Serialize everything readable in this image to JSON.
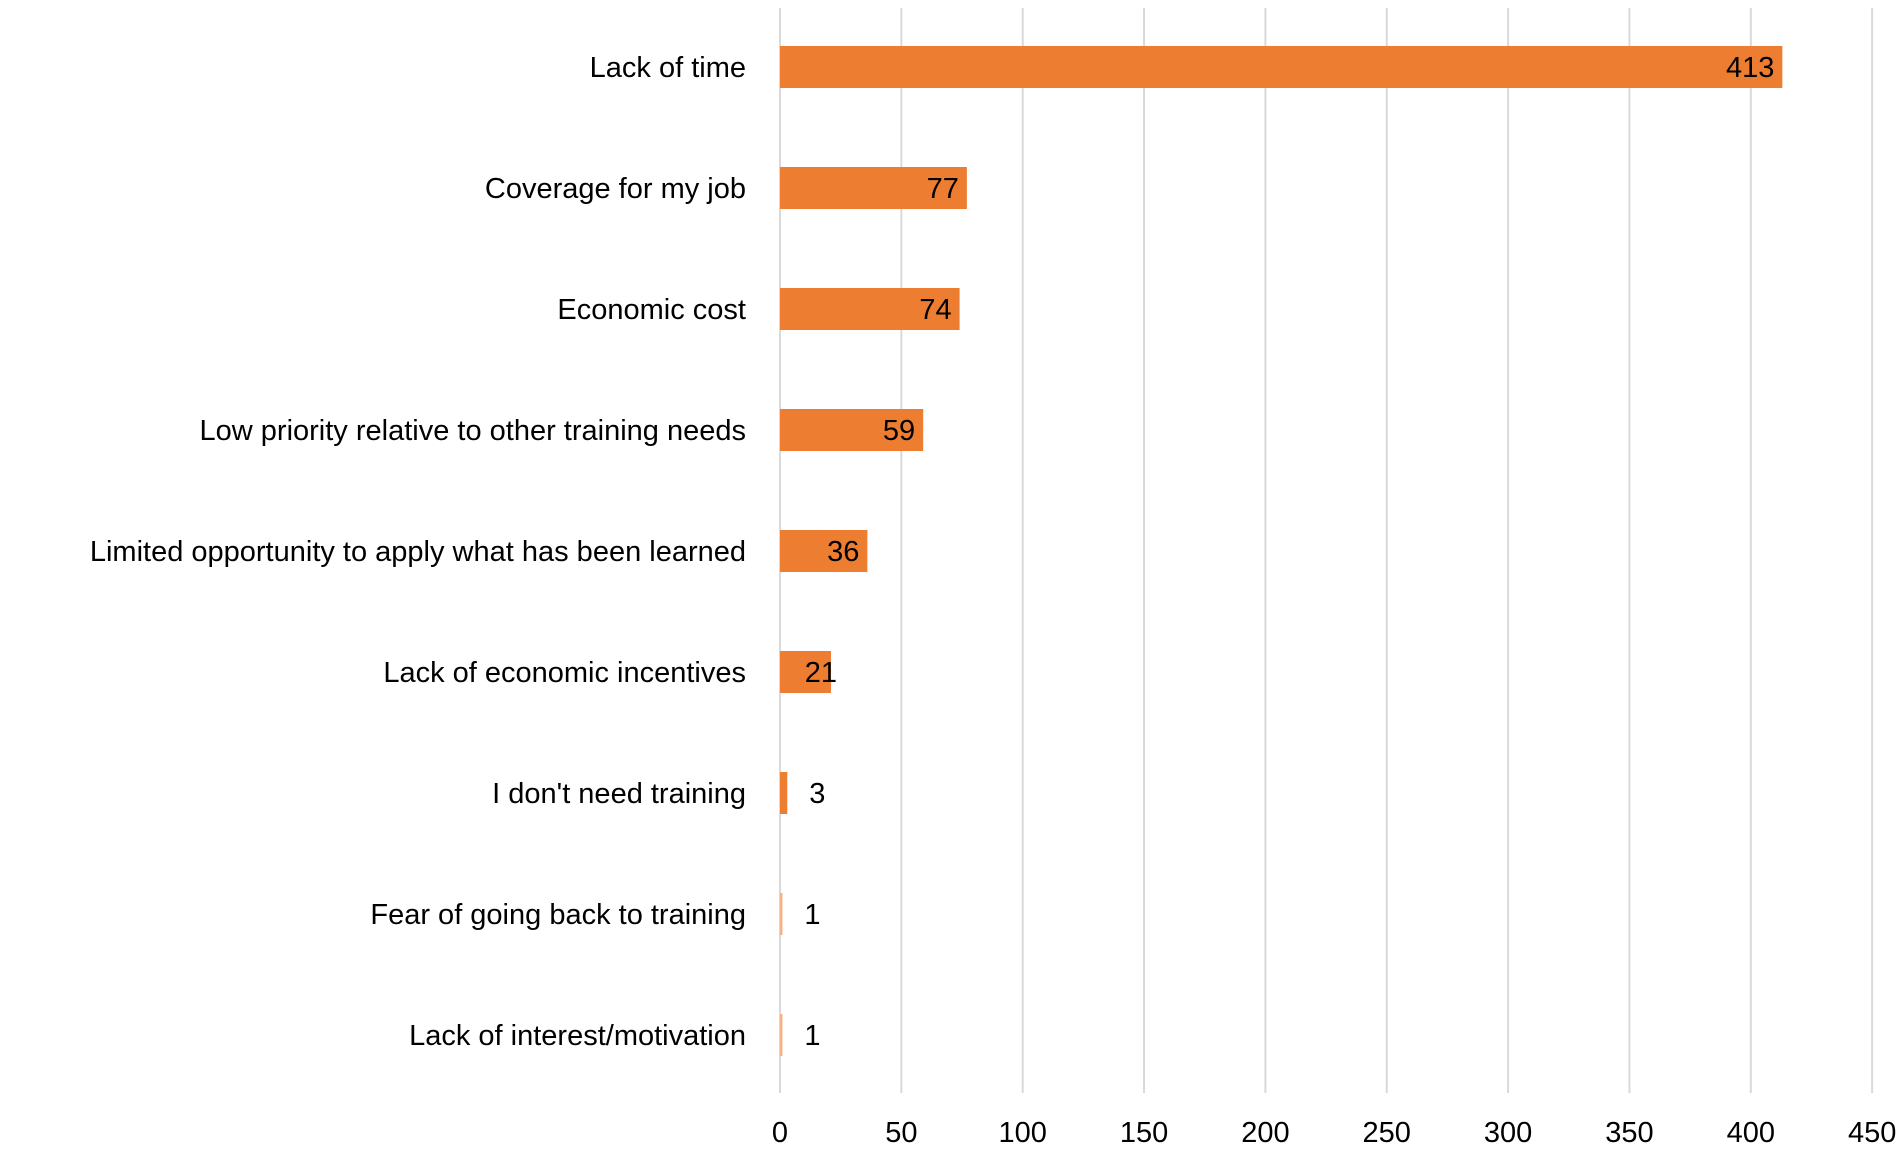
{
  "chart_data": {
    "type": "bar",
    "orientation": "horizontal",
    "title": "",
    "xlabel": "",
    "ylabel": "",
    "categories": [
      "Lack of time",
      "Coverage for my job",
      "Economic cost",
      "Low priority relative to other training needs",
      "Limited opportunity to apply what has been learned",
      "Lack of economic incentives",
      "I don't need training",
      "Fear of going back to training",
      "Lack of interest/motivation"
    ],
    "values": [
      413,
      77,
      74,
      59,
      36,
      21,
      3,
      1,
      1
    ],
    "xlim": [
      0,
      450
    ],
    "x_ticks": [
      0,
      50,
      100,
      150,
      200,
      250,
      300,
      350,
      400,
      450
    ],
    "grid": "vertical",
    "legend": "none",
    "data_labels": true,
    "colors": {
      "bar": "#ED7D31",
      "bar_faint": "#F4B183",
      "grid": "#D9D9D9",
      "text": "#000000"
    }
  }
}
